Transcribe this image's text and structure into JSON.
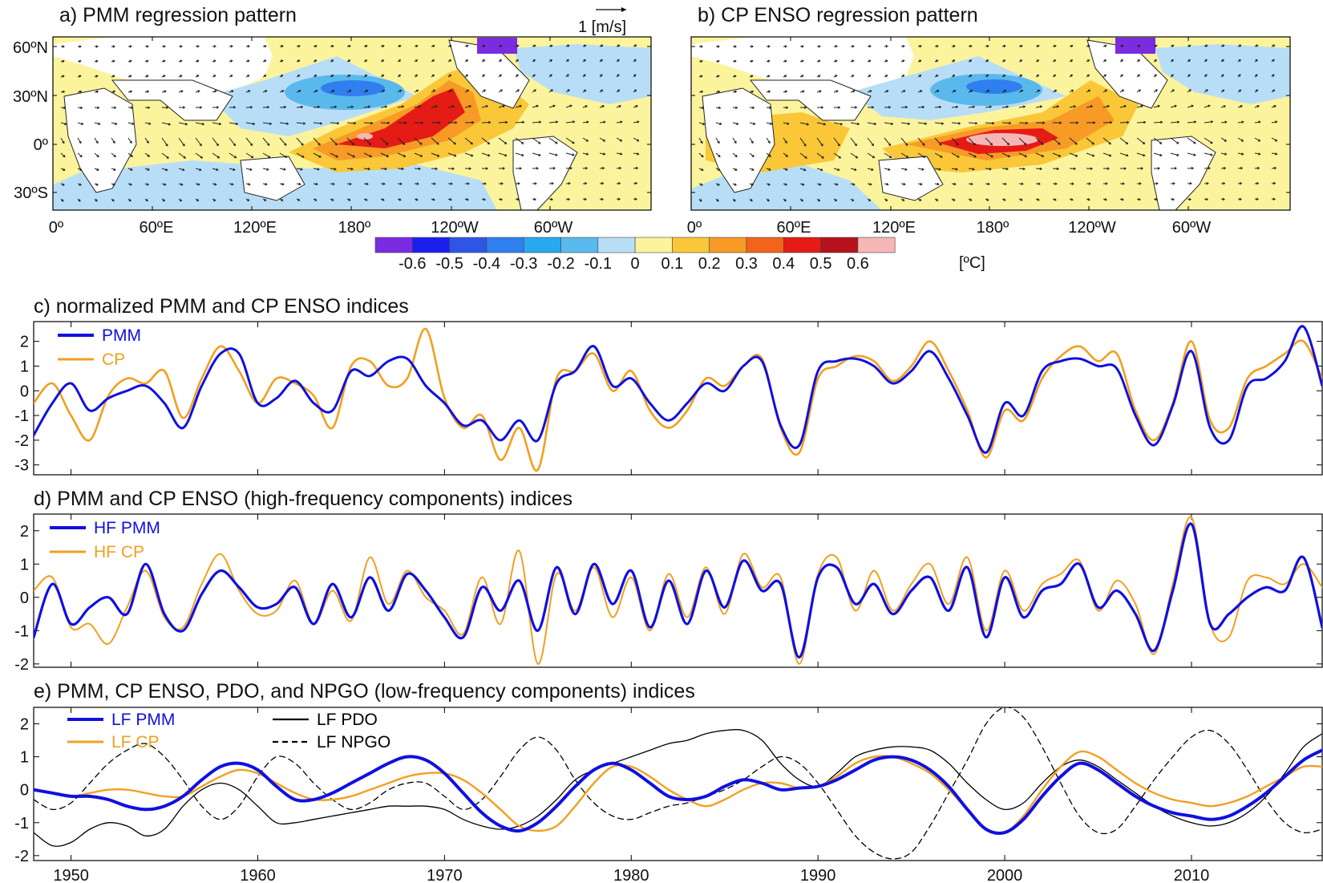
{
  "chart_data": [
    {
      "type": "heatmap",
      "title": "a) PMM regression pattern",
      "lon_tick_labels": [
        "0º",
        "60ºE",
        "120ºE",
        "180º",
        "120ºW",
        "60ºW"
      ],
      "lat_tick_labels": [
        "60ºN",
        "30ºN",
        "0º",
        "30ºS"
      ],
      "vector_key_label": "1 [m/s]",
      "field": "SST regression with surface wind vectors"
    },
    {
      "type": "heatmap",
      "title": "b) CP ENSO regression pattern",
      "lon_tick_labels": [
        "0º",
        "60ºE",
        "120ºE",
        "180º",
        "120ºW",
        "60ºW"
      ],
      "lat_tick_labels": [
        "60ºN",
        "30ºN",
        "0º",
        "30ºS"
      ],
      "field": "SST regression with surface wind vectors"
    },
    {
      "type": "colorbar",
      "unit_label": "[ºC]",
      "tick_labels": [
        "-0.6",
        "-0.5",
        "-0.4",
        "-0.3",
        "-0.2",
        "-0.1",
        "0",
        "0.1",
        "0.2",
        "0.3",
        "0.4",
        "0.5",
        "0.6"
      ],
      "colors": [
        "#7b2be0",
        "#1a1ff0",
        "#2e55e6",
        "#2f7fee",
        "#27a9ee",
        "#5ab9ec",
        "#b8def7",
        "#fcf49c",
        "#f9c738",
        "#f79a26",
        "#f2641c",
        "#e51b16",
        "#b5121b",
        "#f7b6b6"
      ]
    },
    {
      "type": "line",
      "title": "c) normalized PMM and CP ENSO indices",
      "xlim": [
        1948,
        2017
      ],
      "ylim": [
        -3.4,
        2.8
      ],
      "yticks": [
        -3,
        -2,
        -1,
        0,
        1,
        2
      ],
      "ytick_labels": [
        "-3",
        "-2",
        "-1",
        "0",
        "1",
        "2"
      ],
      "legend": [
        "PMM",
        "CP"
      ],
      "legend_position": "top-left",
      "x": [
        1948,
        1949,
        1950,
        1951,
        1952,
        1953,
        1954,
        1955,
        1956,
        1957,
        1958,
        1959,
        1960,
        1961,
        1962,
        1963,
        1964,
        1965,
        1966,
        1967,
        1968,
        1969,
        1970,
        1971,
        1972,
        1973,
        1974,
        1975,
        1976,
        1977,
        1978,
        1979,
        1980,
        1981,
        1982,
        1983,
        1984,
        1985,
        1986,
        1987,
        1988,
        1989,
        1990,
        1991,
        1992,
        1993,
        1994,
        1995,
        1996,
        1997,
        1998,
        1999,
        2000,
        2001,
        2002,
        2003,
        2004,
        2005,
        2006,
        2007,
        2008,
        2009,
        2010,
        2011,
        2012,
        2013,
        2014,
        2015,
        2016,
        2017
      ],
      "series": [
        {
          "name": "PMM",
          "color": "#1010e0",
          "values": [
            -1.8,
            -0.5,
            0.3,
            -0.8,
            -0.3,
            0.0,
            0.2,
            -0.5,
            -1.5,
            0.2,
            1.5,
            1.5,
            -0.5,
            -0.3,
            0.4,
            -0.5,
            -0.8,
            0.8,
            0.6,
            1.2,
            1.3,
            0.2,
            -0.5,
            -1.4,
            -1.2,
            -2.0,
            -1.2,
            -2.0,
            0.3,
            0.8,
            1.8,
            0.2,
            0.5,
            -0.5,
            -1.2,
            -0.5,
            0.3,
            0.0,
            1.0,
            1.2,
            -1.4,
            -2.2,
            0.8,
            1.2,
            1.3,
            1.0,
            0.3,
            0.8,
            1.6,
            0.5,
            -1.0,
            -2.5,
            -0.5,
            -1.0,
            0.8,
            1.2,
            1.3,
            1.0,
            0.9,
            -1.0,
            -2.2,
            -0.6,
            1.6,
            -1.5,
            -2.0,
            0.2,
            0.5,
            1.2,
            2.6,
            0.2
          ]
        },
        {
          "name": "CP",
          "color": "#f0a020",
          "values": [
            -0.5,
            0.3,
            -1.0,
            -2.0,
            -0.2,
            0.5,
            0.3,
            0.8,
            -1.1,
            0.5,
            1.8,
            0.8,
            -0.5,
            0.5,
            0.3,
            -0.2,
            -1.5,
            1.0,
            1.2,
            0.2,
            0.5,
            2.5,
            -0.3,
            -1.5,
            -1.0,
            -2.8,
            -1.5,
            -3.2,
            0.5,
            0.8,
            1.5,
            0.0,
            0.8,
            -0.8,
            -1.5,
            -0.8,
            0.5,
            0.2,
            1.0,
            1.3,
            -1.5,
            -2.5,
            0.5,
            1.0,
            1.4,
            1.2,
            0.4,
            1.0,
            2.0,
            0.8,
            -0.8,
            -2.7,
            -0.8,
            -1.2,
            0.5,
            1.4,
            1.8,
            1.2,
            1.5,
            -0.8,
            -2.0,
            -0.5,
            2.0,
            -1.2,
            -1.5,
            0.5,
            1.0,
            1.5,
            2.0,
            0.5
          ]
        }
      ]
    },
    {
      "type": "line",
      "title": "d) PMM and CP ENSO (high-frequency components) indices",
      "xlim": [
        1948,
        2017
      ],
      "ylim": [
        -2.1,
        2.5
      ],
      "yticks": [
        -2,
        -1,
        0,
        1,
        2
      ],
      "ytick_labels": [
        "-2",
        "-1",
        "0",
        "1",
        "2"
      ],
      "legend": [
        "HF PMM",
        "HF CP"
      ],
      "legend_position": "top-left",
      "x": [
        1948,
        1949,
        1950,
        1951,
        1952,
        1953,
        1954,
        1955,
        1956,
        1957,
        1958,
        1959,
        1960,
        1961,
        1962,
        1963,
        1964,
        1965,
        1966,
        1967,
        1968,
        1969,
        1970,
        1971,
        1972,
        1973,
        1974,
        1975,
        1976,
        1977,
        1978,
        1979,
        1980,
        1981,
        1982,
        1983,
        1984,
        1985,
        1986,
        1987,
        1988,
        1989,
        1990,
        1991,
        1992,
        1993,
        1994,
        1995,
        1996,
        1997,
        1998,
        1999,
        2000,
        2001,
        2002,
        2003,
        2004,
        2005,
        2006,
        2007,
        2008,
        2009,
        2010,
        2011,
        2012,
        2013,
        2014,
        2015,
        2016,
        2017
      ],
      "series": [
        {
          "name": "HF PMM",
          "color": "#1010e0",
          "values": [
            -1.2,
            0.4,
            -0.8,
            -0.3,
            0.0,
            -0.5,
            1.0,
            -0.5,
            -1.0,
            0.1,
            0.8,
            0.3,
            -0.3,
            -0.2,
            0.3,
            -0.8,
            0.4,
            -0.6,
            0.6,
            -0.4,
            0.7,
            0.2,
            -0.6,
            -1.2,
            0.3,
            -0.4,
            0.5,
            -1.0,
            0.9,
            -0.5,
            1.0,
            -0.2,
            0.8,
            -0.9,
            0.5,
            -0.8,
            0.8,
            -0.3,
            1.1,
            0.2,
            0.4,
            -1.8,
            0.6,
            0.9,
            -0.2,
            0.4,
            -0.5,
            0.2,
            0.6,
            -0.4,
            0.9,
            -1.2,
            0.6,
            -0.6,
            0.2,
            0.4,
            1.0,
            -0.3,
            0.2,
            -0.5,
            -1.6,
            0.2,
            2.2,
            -0.8,
            -0.5,
            0.0,
            0.3,
            0.2,
            1.2,
            -0.9
          ]
        },
        {
          "name": "HF CP",
          "color": "#f0a020",
          "values": [
            0.2,
            0.6,
            -0.9,
            -0.8,
            -1.4,
            -0.3,
            0.8,
            -0.6,
            -0.9,
            0.4,
            1.3,
            0.2,
            -0.5,
            -0.4,
            0.5,
            -0.8,
            0.2,
            -0.7,
            1.2,
            -0.2,
            0.8,
            0.0,
            -0.4,
            -1.1,
            0.6,
            -0.8,
            1.4,
            -2.0,
            0.7,
            -0.4,
            0.9,
            -0.6,
            0.6,
            -1.0,
            0.7,
            -0.6,
            0.9,
            -0.5,
            1.3,
            0.3,
            0.6,
            -2.0,
            0.7,
            1.2,
            -0.4,
            0.8,
            -0.4,
            0.4,
            1.0,
            -0.2,
            1.2,
            -1.0,
            0.8,
            -0.4,
            0.4,
            0.7,
            1.1,
            -0.4,
            0.5,
            -0.2,
            -1.7,
            0.4,
            2.4,
            -0.8,
            -1.2,
            0.5,
            0.6,
            0.4,
            1.0,
            0.3
          ]
        }
      ]
    },
    {
      "type": "line",
      "title": "e) PMM, CP ENSO, PDO, and NPGO (low-frequency components) indices",
      "xlim": [
        1948,
        2017
      ],
      "ylim": [
        -2.15,
        2.5
      ],
      "yticks": [
        -2,
        -1,
        0,
        1,
        2
      ],
      "ytick_labels": [
        "-2",
        "-1",
        "0",
        "1",
        "2"
      ],
      "xticks": [
        1950,
        1960,
        1970,
        1980,
        1990,
        2000,
        2010
      ],
      "xtick_labels": [
        "1950",
        "1960",
        "1970",
        "1980",
        "1990",
        "2000",
        "2010"
      ],
      "xlabel": "",
      "legend": [
        "LF PMM",
        "LF CP",
        "LF PDO",
        "LF NPGO"
      ],
      "legend_position": "top-left",
      "x": [
        1948,
        1949,
        1950,
        1951,
        1952,
        1953,
        1954,
        1955,
        1956,
        1957,
        1958,
        1959,
        1960,
        1961,
        1962,
        1963,
        1964,
        1965,
        1966,
        1967,
        1968,
        1969,
        1970,
        1971,
        1972,
        1973,
        1974,
        1975,
        1976,
        1977,
        1978,
        1979,
        1980,
        1981,
        1982,
        1983,
        1984,
        1985,
        1986,
        1987,
        1988,
        1989,
        1990,
        1991,
        1992,
        1993,
        1994,
        1995,
        1996,
        1997,
        1998,
        1999,
        2000,
        2001,
        2002,
        2003,
        2004,
        2005,
        2006,
        2007,
        2008,
        2009,
        2010,
        2011,
        2012,
        2013,
        2014,
        2015,
        2016,
        2017
      ],
      "series": [
        {
          "name": "LF PMM",
          "color": "#1010e0",
          "values": [
            0.0,
            -0.1,
            -0.2,
            -0.2,
            -0.3,
            -0.5,
            -0.6,
            -0.5,
            -0.2,
            0.3,
            0.7,
            0.8,
            0.6,
            0.1,
            -0.3,
            -0.3,
            -0.1,
            0.2,
            0.5,
            0.8,
            1.0,
            0.9,
            0.5,
            -0.1,
            -0.7,
            -1.1,
            -1.25,
            -1.0,
            -0.5,
            0.1,
            0.6,
            0.8,
            0.6,
            0.2,
            -0.2,
            -0.3,
            -0.2,
            0.1,
            0.3,
            0.2,
            0.0,
            0.05,
            0.1,
            0.3,
            0.6,
            0.9,
            1.0,
            0.9,
            0.6,
            0.1,
            -0.6,
            -1.2,
            -1.3,
            -0.9,
            -0.2,
            0.4,
            0.8,
            0.6,
            0.2,
            -0.2,
            -0.5,
            -0.7,
            -0.8,
            -0.9,
            -0.8,
            -0.5,
            -0.1,
            0.4,
            0.9,
            1.2
          ]
        },
        {
          "name": "LF CP",
          "color": "#f0a020",
          "values": [
            0.0,
            -0.1,
            -0.2,
            -0.1,
            0.0,
            0.0,
            -0.1,
            -0.2,
            -0.2,
            0.1,
            0.4,
            0.6,
            0.5,
            0.2,
            -0.1,
            -0.3,
            -0.3,
            -0.2,
            0.0,
            0.2,
            0.4,
            0.5,
            0.5,
            0.3,
            -0.1,
            -0.6,
            -1.1,
            -1.25,
            -1.1,
            -0.5,
            0.2,
            0.7,
            0.7,
            0.4,
            0.0,
            -0.3,
            -0.5,
            -0.3,
            0.0,
            0.2,
            0.2,
            0.05,
            0.1,
            0.4,
            0.8,
            1.0,
            1.0,
            0.8,
            0.5,
            0.0,
            -0.6,
            -1.2,
            -1.3,
            -0.8,
            0.0,
            0.7,
            1.15,
            1.0,
            0.6,
            0.2,
            -0.1,
            -0.3,
            -0.4,
            -0.5,
            -0.4,
            -0.2,
            0.1,
            0.4,
            0.7,
            0.7
          ]
        },
        {
          "name": "LF PDO",
          "color": "#000000",
          "values": [
            -1.3,
            -1.7,
            -1.6,
            -1.2,
            -1.0,
            -1.1,
            -1.4,
            -1.2,
            -0.5,
            0.0,
            0.2,
            0.0,
            -0.5,
            -1.0,
            -1.0,
            -0.9,
            -0.8,
            -0.7,
            -0.6,
            -0.5,
            -0.5,
            -0.5,
            -0.6,
            -0.9,
            -1.1,
            -1.2,
            -1.1,
            -0.8,
            -0.3,
            0.3,
            0.6,
            0.8,
            1.0,
            1.2,
            1.4,
            1.5,
            1.7,
            1.8,
            1.8,
            1.5,
            0.8,
            0.3,
            0.1,
            0.5,
            1.0,
            1.2,
            1.3,
            1.3,
            1.2,
            0.8,
            0.2,
            -0.3,
            -0.6,
            -0.4,
            0.2,
            0.7,
            0.9,
            0.7,
            0.3,
            -0.1,
            -0.5,
            -0.8,
            -1.0,
            -1.1,
            -1.0,
            -0.7,
            -0.2,
            0.5,
            1.3,
            1.7
          ]
        },
        {
          "name": "LF NPGO",
          "color": "#000000",
          "dashed": true,
          "values": [
            -0.3,
            -0.6,
            -0.4,
            0.2,
            0.8,
            1.2,
            1.4,
            1.0,
            0.3,
            -0.5,
            -0.9,
            -0.5,
            0.4,
            1.0,
            0.8,
            0.2,
            -0.3,
            -0.6,
            -0.4,
            0.0,
            0.2,
            0.2,
            -0.2,
            -0.6,
            -0.3,
            0.4,
            1.2,
            1.6,
            1.2,
            0.3,
            -0.4,
            -0.8,
            -0.9,
            -0.7,
            -0.5,
            -0.4,
            -0.2,
            0.0,
            0.3,
            0.7,
            1.0,
            0.8,
            0.2,
            -0.6,
            -1.4,
            -1.9,
            -2.1,
            -1.9,
            -1.1,
            -0.1,
            0.9,
            2.0,
            2.5,
            2.2,
            1.3,
            0.2,
            -0.8,
            -1.3,
            -1.2,
            -0.5,
            0.3,
            1.0,
            1.6,
            1.8,
            1.4,
            0.6,
            -0.3,
            -1.0,
            -1.3,
            -1.2
          ]
        }
      ]
    }
  ]
}
